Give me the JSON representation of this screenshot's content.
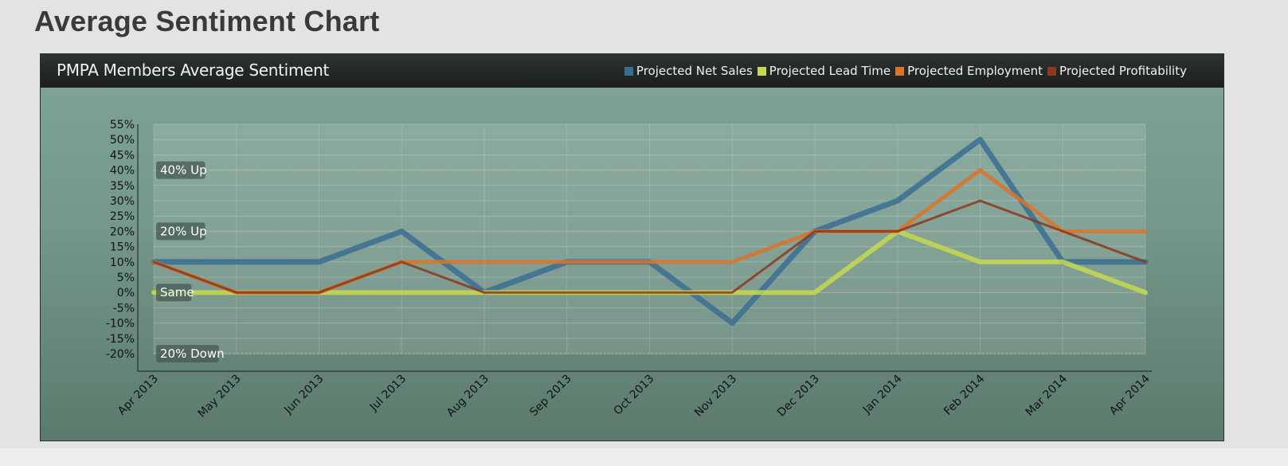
{
  "page": {
    "title": "Average Sentiment Chart"
  },
  "chart_data": {
    "type": "line",
    "title": "PMPA Members Average Sentiment",
    "xlabel": "",
    "ylabel": "",
    "categories": [
      "Apr 2013",
      "May 2013",
      "Jun 2013",
      "Jul 2013",
      "Aug 2013",
      "Sep 2013",
      "Oct 2013",
      "Nov 2013",
      "Dec 2013",
      "Jan 2014",
      "Feb 2014",
      "Mar 2014",
      "Apr 2014"
    ],
    "ylim": [
      -20,
      55
    ],
    "yticks": [
      55,
      50,
      45,
      40,
      35,
      30,
      25,
      20,
      15,
      10,
      5,
      0,
      -5,
      -10,
      -15,
      -20
    ],
    "ytick_suffix": "%",
    "grid": true,
    "legend": "top-right",
    "series": [
      {
        "name": "Projected Net Sales",
        "color": "#3a6f93",
        "values": [
          10,
          10,
          10,
          20,
          0,
          10,
          10,
          -10,
          20,
          30,
          50,
          10,
          10
        ]
      },
      {
        "name": "Projected Lead Time",
        "color": "#c6d94e",
        "values": [
          0,
          0,
          0,
          0,
          0,
          0,
          0,
          0,
          0,
          20,
          10,
          10,
          0
        ]
      },
      {
        "name": "Projected Employment",
        "color": "#d9742a",
        "values": [
          10,
          0,
          0,
          10,
          10,
          10,
          10,
          10,
          20,
          20,
          40,
          20,
          20
        ]
      },
      {
        "name": "Projected Profitability",
        "color": "#8a3a1c",
        "values": [
          10,
          0,
          0,
          10,
          0,
          0,
          0,
          0,
          20,
          20,
          30,
          20,
          10
        ]
      }
    ],
    "reference_lines": [
      {
        "value": 40,
        "label": "40% Up"
      },
      {
        "value": 20,
        "label": "20% Up"
      },
      {
        "value": 0,
        "label": "Same"
      },
      {
        "value": -20,
        "label": "20% Down"
      }
    ]
  }
}
